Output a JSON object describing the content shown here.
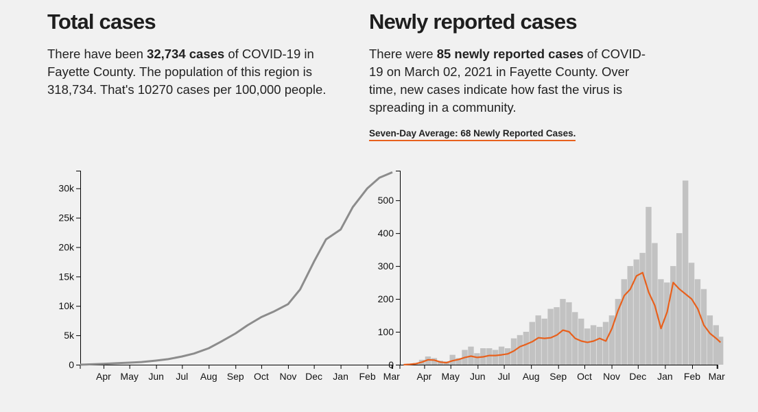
{
  "left": {
    "title": "Total cases",
    "para": {
      "t1": "There have been ",
      "cases": "32,734 cases",
      "t2": " of COVID-19 in Fayette County. The population of this region is 318,734. That's 10270 cases per 100,000 people."
    }
  },
  "right": {
    "title": "Newly reported cases",
    "para": {
      "t1": "There were ",
      "cases": "85 newly reported cases",
      "t2": " of COVID-19 on March 02, 2021 in Fayette County. Over time, new cases indicate how fast the virus is spreading in a community."
    },
    "average_label": "Seven-Day Average: 68 Newly Reported Cases."
  },
  "colors": {
    "line_gray": "#8c8c8c",
    "bar_gray": "#c2c2c2",
    "avg_orange": "#e8601c"
  },
  "chart_data": [
    {
      "type": "line",
      "title": "",
      "x_range": [
        "2020-03-05",
        "2021-03-02"
      ],
      "y_range": [
        0,
        33000
      ],
      "y_ticks": [
        0,
        5000,
        10000,
        15000,
        20000,
        25000,
        30000
      ],
      "y_tick_labels": [
        "0",
        "5k",
        "10k",
        "15k",
        "20k",
        "25k",
        "30k"
      ],
      "x_tick_labels": [
        "Apr",
        "May",
        "Jun",
        "Jul",
        "Aug",
        "Sep",
        "Oct",
        "Nov",
        "Dec",
        "Jan",
        "Feb",
        "Mar"
      ],
      "series": [
        {
          "x": [
            "2020-03-05",
            "2020-04-01",
            "2020-04-15",
            "2020-05-01",
            "2020-05-15",
            "2020-06-01",
            "2020-06-15",
            "2020-07-01",
            "2020-07-15",
            "2020-08-01",
            "2020-08-15",
            "2020-09-01",
            "2020-09-15",
            "2020-10-01",
            "2020-10-15",
            "2020-11-01",
            "2020-11-15",
            "2020-12-01",
            "2020-12-15",
            "2021-01-01",
            "2021-01-15",
            "2021-02-01",
            "2021-02-15",
            "2021-03-02"
          ],
          "y": [
            0,
            150,
            250,
            350,
            450,
            700,
            950,
            1400,
            1900,
            2800,
            3900,
            5300,
            6700,
            8100,
            9000,
            10300,
            12800,
            17500,
            21300,
            23000,
            26800,
            30000,
            31800,
            32734
          ]
        }
      ]
    },
    {
      "type": "bar",
      "title": "",
      "x_range": [
        "2020-03-05",
        "2021-03-02"
      ],
      "y_range": [
        0,
        590
      ],
      "y_ticks": [
        0,
        100,
        200,
        300,
        400,
        500
      ],
      "y_tick_labels": [
        "0",
        "100",
        "200",
        "300",
        "400",
        "500"
      ],
      "x_tick_labels": [
        "Apr",
        "May",
        "Jun",
        "Jul",
        "Aug",
        "Sep",
        "Oct",
        "Nov",
        "Dec",
        "Jan",
        "Feb",
        "Mar"
      ],
      "series": [
        {
          "name": "",
          "type": "bar",
          "x": [
            "2020-03-05",
            "2020-03-12",
            "2020-03-19",
            "2020-03-26",
            "2020-04-02",
            "2020-04-09",
            "2020-04-16",
            "2020-04-23",
            "2020-04-30",
            "2020-05-07",
            "2020-05-14",
            "2020-05-21",
            "2020-05-28",
            "2020-06-04",
            "2020-06-11",
            "2020-06-18",
            "2020-06-25",
            "2020-07-02",
            "2020-07-09",
            "2020-07-16",
            "2020-07-23",
            "2020-07-30",
            "2020-08-06",
            "2020-08-13",
            "2020-08-20",
            "2020-08-27",
            "2020-09-03",
            "2020-09-10",
            "2020-09-17",
            "2020-09-24",
            "2020-10-01",
            "2020-10-08",
            "2020-10-15",
            "2020-10-22",
            "2020-10-29",
            "2020-11-05",
            "2020-11-12",
            "2020-11-19",
            "2020-11-26",
            "2020-12-03",
            "2020-12-10",
            "2020-12-17",
            "2020-12-24",
            "2020-12-31",
            "2021-01-07",
            "2021-01-14",
            "2021-01-21",
            "2021-01-28",
            "2021-02-04",
            "2021-02-11",
            "2021-02-18",
            "2021-02-25",
            "2021-03-02"
          ],
          "y": [
            0,
            2,
            5,
            15,
            25,
            20,
            12,
            10,
            30,
            20,
            45,
            55,
            35,
            50,
            50,
            45,
            55,
            50,
            80,
            90,
            100,
            130,
            150,
            140,
            170,
            175,
            200,
            190,
            160,
            140,
            110,
            120,
            115,
            130,
            150,
            200,
            260,
            300,
            320,
            340,
            480,
            370,
            260,
            250,
            300,
            400,
            560,
            310,
            260,
            230,
            150,
            120,
            85
          ]
        },
        {
          "name": "",
          "type": "line",
          "x": [
            "2020-03-05",
            "2020-03-12",
            "2020-03-19",
            "2020-03-26",
            "2020-04-02",
            "2020-04-09",
            "2020-04-16",
            "2020-04-23",
            "2020-04-30",
            "2020-05-07",
            "2020-05-14",
            "2020-05-21",
            "2020-05-28",
            "2020-06-04",
            "2020-06-11",
            "2020-06-18",
            "2020-06-25",
            "2020-07-02",
            "2020-07-09",
            "2020-07-16",
            "2020-07-23",
            "2020-07-30",
            "2020-08-06",
            "2020-08-13",
            "2020-08-20",
            "2020-08-27",
            "2020-09-03",
            "2020-09-10",
            "2020-09-17",
            "2020-09-24",
            "2020-10-01",
            "2020-10-08",
            "2020-10-15",
            "2020-10-22",
            "2020-10-29",
            "2020-11-05",
            "2020-11-12",
            "2020-11-19",
            "2020-11-26",
            "2020-12-03",
            "2020-12-10",
            "2020-12-17",
            "2020-12-24",
            "2020-12-31",
            "2021-01-07",
            "2021-01-14",
            "2021-01-21",
            "2021-01-28",
            "2021-02-04",
            "2021-02-11",
            "2021-02-18",
            "2021-02-25",
            "2021-03-02"
          ],
          "y": [
            0,
            1,
            3,
            8,
            15,
            14,
            8,
            6,
            12,
            16,
            22,
            26,
            22,
            24,
            28,
            28,
            30,
            33,
            42,
            55,
            62,
            70,
            82,
            80,
            82,
            90,
            105,
            100,
            80,
            72,
            68,
            72,
            80,
            72,
            110,
            165,
            210,
            230,
            270,
            280,
            220,
            180,
            110,
            160,
            250,
            230,
            215,
            200,
            170,
            120,
            95,
            80,
            68
          ]
        }
      ]
    }
  ]
}
